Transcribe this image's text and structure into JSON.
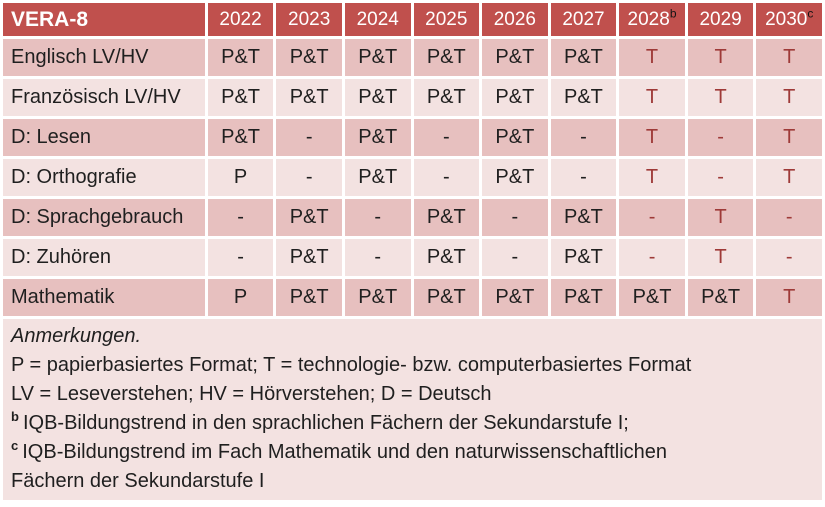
{
  "colors": {
    "header_bg": "#c0504d",
    "header_text": "#ffffff",
    "row_dark": "#e7c0bf",
    "row_light": "#f3e2e1",
    "notes_bg": "#f3e2e1",
    "accent_text": "#9e3a38"
  },
  "chart_data": {
    "type": "table",
    "header": {
      "title": "VERA-8",
      "years": [
        {
          "label": "2022"
        },
        {
          "label": "2023"
        },
        {
          "label": "2024"
        },
        {
          "label": "2025"
        },
        {
          "label": "2026"
        },
        {
          "label": "2027"
        },
        {
          "label": "2028",
          "sup": "b"
        },
        {
          "label": "2029"
        },
        {
          "label": "2030",
          "sup": "c"
        }
      ]
    },
    "rows": [
      {
        "label": "Englisch LV/HV",
        "cells": [
          {
            "v": "P&T"
          },
          {
            "v": "P&T"
          },
          {
            "v": "P&T"
          },
          {
            "v": "P&T"
          },
          {
            "v": "P&T"
          },
          {
            "v": "P&T"
          },
          {
            "v": "T",
            "red": true
          },
          {
            "v": "T",
            "red": true
          },
          {
            "v": "T",
            "red": true
          }
        ]
      },
      {
        "label": "Französisch LV/HV",
        "cells": [
          {
            "v": "P&T"
          },
          {
            "v": "P&T"
          },
          {
            "v": "P&T"
          },
          {
            "v": "P&T"
          },
          {
            "v": "P&T"
          },
          {
            "v": "P&T"
          },
          {
            "v": "T",
            "red": true
          },
          {
            "v": "T",
            "red": true
          },
          {
            "v": "T",
            "red": true
          }
        ]
      },
      {
        "label": "D: Lesen",
        "cells": [
          {
            "v": "P&T"
          },
          {
            "v": "-"
          },
          {
            "v": "P&T"
          },
          {
            "v": "-"
          },
          {
            "v": "P&T"
          },
          {
            "v": "-"
          },
          {
            "v": "T",
            "red": true
          },
          {
            "v": "-",
            "red": true
          },
          {
            "v": "T",
            "red": true
          }
        ]
      },
      {
        "label": "D: Orthografie",
        "cells": [
          {
            "v": "P"
          },
          {
            "v": "-"
          },
          {
            "v": "P&T"
          },
          {
            "v": "-"
          },
          {
            "v": "P&T"
          },
          {
            "v": "-"
          },
          {
            "v": "T",
            "red": true
          },
          {
            "v": "-",
            "red": true
          },
          {
            "v": "T",
            "red": true
          }
        ]
      },
      {
        "label": "D: Sprachgebrauch",
        "cells": [
          {
            "v": "-"
          },
          {
            "v": "P&T"
          },
          {
            "v": "-"
          },
          {
            "v": "P&T"
          },
          {
            "v": "-"
          },
          {
            "v": "P&T"
          },
          {
            "v": "-",
            "red": true
          },
          {
            "v": "T",
            "red": true
          },
          {
            "v": "-",
            "red": true
          }
        ]
      },
      {
        "label": "D: Zuhören",
        "cells": [
          {
            "v": "-"
          },
          {
            "v": "P&T"
          },
          {
            "v": "-"
          },
          {
            "v": "P&T"
          },
          {
            "v": "-"
          },
          {
            "v": "P&T"
          },
          {
            "v": "-",
            "red": true
          },
          {
            "v": "T",
            "red": true
          },
          {
            "v": "-",
            "red": true
          }
        ]
      },
      {
        "label": "Mathematik",
        "cells": [
          {
            "v": "P"
          },
          {
            "v": "P&T"
          },
          {
            "v": "P&T"
          },
          {
            "v": "P&T"
          },
          {
            "v": "P&T"
          },
          {
            "v": "P&T"
          },
          {
            "v": "P&T"
          },
          {
            "v": "P&T"
          },
          {
            "v": "T",
            "red": true
          }
        ]
      }
    ],
    "notes": {
      "title": "Anmerkungen.",
      "lines": [
        {
          "text": "P = papierbasiertes Format; T = technologie- bzw. computerbasiertes Format"
        },
        {
          "text": "LV = Leseverstehen; HV = Hörverstehen; D = Deutsch"
        },
        {
          "sup": "b",
          "text": "IQB-Bildungstrend in den sprachlichen Fächern der Sekundarstufe I;"
        },
        {
          "sup": "c",
          "text": "IQB-Bildungstrend im Fach Mathematik und den naturwissenschaftlichen"
        },
        {
          "text": "Fächern der Sekundarstufe I"
        }
      ]
    }
  }
}
